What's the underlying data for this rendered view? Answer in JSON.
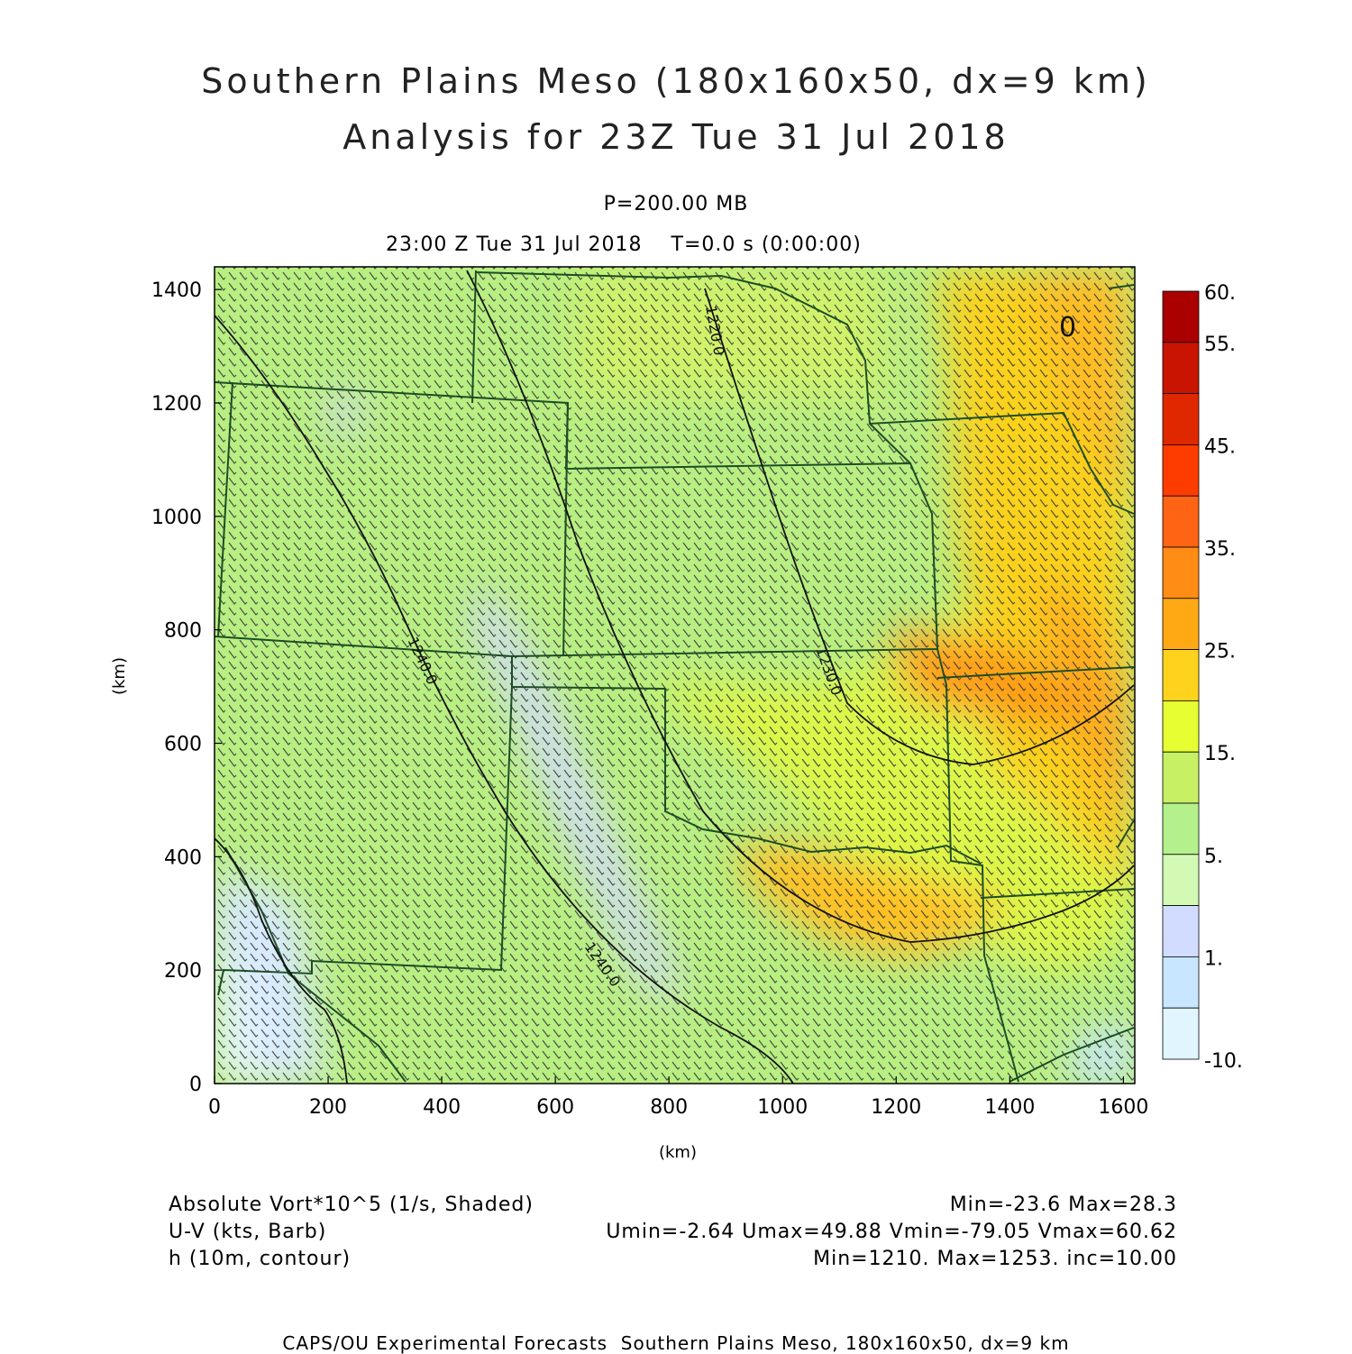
{
  "title": {
    "line1": "Southern Plains Meso (180x160x50, dx=9 km)",
    "line2": "Analysis for 23Z Tue 31 Jul 2018"
  },
  "level": "P=200.00 MB",
  "valid_time": "23:00 Z Tue 31 Jul 2018    T=0.0 s (0:00:00)",
  "axes": {
    "xlabel": "(km)",
    "ylabel": "(km)",
    "xlim": [
      0,
      1620
    ],
    "ylim": [
      0,
      1440
    ],
    "xticks": [
      "0",
      "200",
      "400",
      "600",
      "800",
      "1000",
      "1200",
      "1400",
      "1600"
    ],
    "yticks": [
      "0",
      "200",
      "400",
      "600",
      "800",
      "1000",
      "1200",
      "1400"
    ]
  },
  "colorbar": {
    "labels": [
      "60.",
      "55.",
      "45.",
      "35.",
      "25.",
      "15.",
      "5.",
      "1.",
      "-10."
    ],
    "colors": [
      "#aa0000",
      "#c81400",
      "#e02800",
      "#ff3c00",
      "#ff6414",
      "#ff8c14",
      "#ffaa14",
      "#ffd21e",
      "#e6ff32",
      "#c8f064",
      "#b4f08c",
      "#d2fab4",
      "#d2dcff",
      "#c8e6ff",
      "#e1f5ff"
    ]
  },
  "contour_labels": [
    "1220.0",
    "1230.0",
    "1240.0",
    "1240.0",
    "0"
  ],
  "legend": {
    "field1": "Absolute Vort*10^5 (1/s, Shaded)",
    "stats1": "Min=-23.6 Max=28.3",
    "field2": "U-V (kts, Barb)",
    "stats2": "Umin=-2.64 Umax=49.88 Vmin=-79.05 Vmax=60.62",
    "field3": "h (10m, contour)",
    "stats3": "Min=1210. Max=1253. inc=10.00"
  },
  "footer": "CAPS/OU Experimental Forecasts  Southern Plains Meso, 180x160x50, dx=9 km"
}
